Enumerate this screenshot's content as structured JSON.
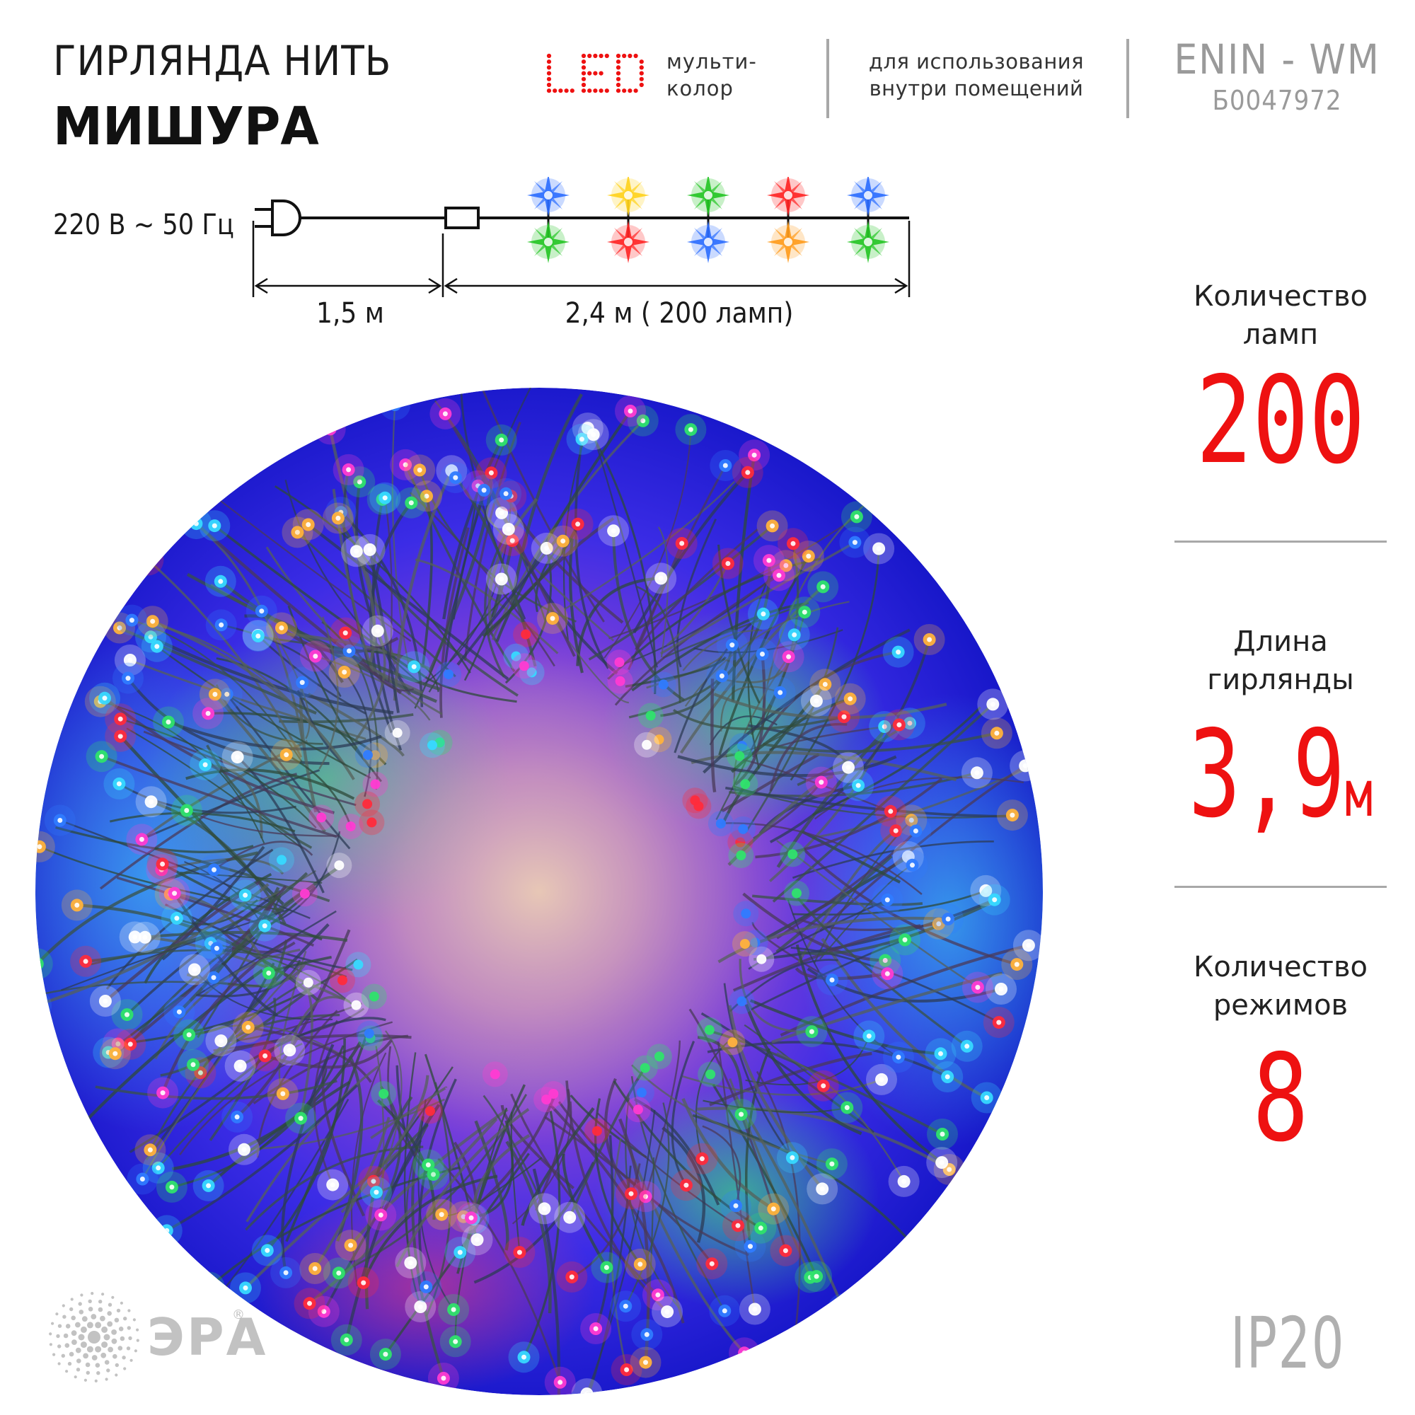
{
  "title": {
    "line1": "ГИРЛЯНДА НИТЬ",
    "line2": "МИШУРА"
  },
  "led": {
    "logo_text": "LED",
    "desc_line1": "мульти-",
    "desc_line2": "колор",
    "color": "#ee1111"
  },
  "usage": {
    "line1": "для использования",
    "line2": "внутри помещений"
  },
  "model": {
    "code": "ENIN - WM",
    "article": "Б0047972"
  },
  "power": {
    "voltage": "220 В ~ 50 Гц"
  },
  "dimensions": {
    "cord_length": "1,5 м",
    "string_length": "2,4  м ( 200 ламп)"
  },
  "bulb_colors_top": [
    "#2a6cff",
    "#ffd21a",
    "#22c422",
    "#ff2222",
    "#2a6cff"
  ],
  "bulb_colors_bottom": [
    "#22c422",
    "#ff2222",
    "#2a6cff",
    "#ff9a1a",
    "#22c422"
  ],
  "specs": {
    "lamps": {
      "label_line1": "Количество",
      "label_line2": "ламп",
      "value": "200"
    },
    "length": {
      "label_line1": "Длина",
      "label_line2": "гирлянды",
      "value": "3,9",
      "unit": "м"
    },
    "modes": {
      "label_line1": "Количество",
      "label_line2": "режимов",
      "value": "8"
    }
  },
  "brand": {
    "name": "ЭРА",
    "reg_mark": "®",
    "icon": "sunburst-dots-icon"
  },
  "ip_rating": "IP20",
  "accent_color": "#ee1111"
}
